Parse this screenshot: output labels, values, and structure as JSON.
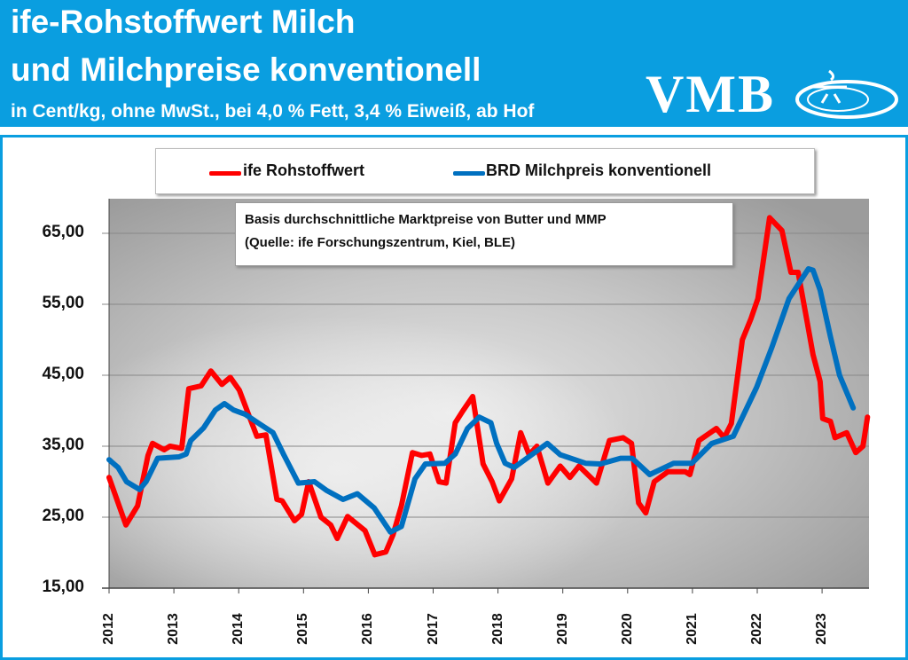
{
  "header": {
    "title_line1": "ife-Rohstoffwert Milch",
    "title_line2": "und Milchpreise konventionell",
    "subtitle": "in Cent/kg, ohne MwSt., bei 4,0 % Fett, 3,4 % Eiweiß, ab Hof",
    "logo_text": "VMB",
    "background_color": "#0a9ee0"
  },
  "annotation": {
    "line1": "Basis durchschnittliche Marktpreise von Butter und MMP",
    "line2": "(Quelle: ife Forschungszentrum, Kiel, BLE)"
  },
  "chart_data": {
    "type": "line",
    "title": "ife-Rohstoffwert Milch und Milchpreise konventionell",
    "ylabel": "",
    "xlabel": "",
    "xlim": [
      2012,
      2023.75
    ],
    "ylim": [
      15,
      70
    ],
    "y_ticks": [
      "15,00",
      "25,00",
      "35,00",
      "45,00",
      "55,00",
      "65,00"
    ],
    "y_tick_values": [
      15,
      25,
      35,
      45,
      55,
      65
    ],
    "x_ticks": [
      "2012",
      "2013",
      "2014",
      "2015",
      "2016",
      "2017",
      "2018",
      "2019",
      "2020",
      "2021",
      "2022",
      "2023"
    ],
    "grid": "horizontal",
    "legend_position": "top",
    "series": [
      {
        "name": "ife Rohstoffwert",
        "color": "#ff0000",
        "points": [
          [
            2012.0,
            30.6
          ],
          [
            2012.26,
            23.9
          ],
          [
            2012.44,
            26.6
          ],
          [
            2012.6,
            33.7
          ],
          [
            2012.67,
            35.4
          ],
          [
            2012.85,
            34.5
          ],
          [
            2012.94,
            35
          ],
          [
            2013.12,
            34.7
          ],
          [
            2013.23,
            43.1
          ],
          [
            2013.42,
            43.5
          ],
          [
            2013.57,
            45.6
          ],
          [
            2013.74,
            43.7
          ],
          [
            2013.87,
            44.7
          ],
          [
            2014.01,
            42.9
          ],
          [
            2014.15,
            39.5
          ],
          [
            2014.28,
            36.4
          ],
          [
            2014.42,
            36.6
          ],
          [
            2014.59,
            27.5
          ],
          [
            2014.67,
            27.3
          ],
          [
            2014.86,
            24.5
          ],
          [
            2014.97,
            25.4
          ],
          [
            2015.08,
            30
          ],
          [
            2015.27,
            25
          ],
          [
            2015.42,
            23.9
          ],
          [
            2015.52,
            22
          ],
          [
            2015.68,
            25.1
          ],
          [
            2015.95,
            23.1
          ],
          [
            2016.1,
            19.7
          ],
          [
            2016.27,
            20.1
          ],
          [
            2016.38,
            22.5
          ],
          [
            2016.51,
            26.6
          ],
          [
            2016.68,
            34.1
          ],
          [
            2016.82,
            33.7
          ],
          [
            2016.95,
            33.9
          ],
          [
            2017.09,
            30
          ],
          [
            2017.2,
            29.8
          ],
          [
            2017.34,
            38.3
          ],
          [
            2017.46,
            40
          ],
          [
            2017.61,
            42
          ],
          [
            2017.77,
            32.5
          ],
          [
            2017.91,
            30
          ],
          [
            2018.02,
            27.3
          ],
          [
            2018.21,
            30.4
          ],
          [
            2018.35,
            36.9
          ],
          [
            2018.48,
            33.8
          ],
          [
            2018.6,
            35
          ],
          [
            2018.77,
            29.8
          ],
          [
            2018.96,
            32.2
          ],
          [
            2019.11,
            30.6
          ],
          [
            2019.25,
            32.2
          ],
          [
            2019.52,
            29.8
          ],
          [
            2019.72,
            35.8
          ],
          [
            2019.93,
            36.2
          ],
          [
            2020.06,
            35.4
          ],
          [
            2020.17,
            27
          ],
          [
            2020.28,
            25.6
          ],
          [
            2020.41,
            30
          ],
          [
            2020.62,
            31.4
          ],
          [
            2020.89,
            31.4
          ],
          [
            2020.96,
            31
          ],
          [
            2021.1,
            35.8
          ],
          [
            2021.37,
            37.5
          ],
          [
            2021.49,
            36.2
          ],
          [
            2021.6,
            38.2
          ],
          [
            2021.77,
            50
          ],
          [
            2021.9,
            52.9
          ],
          [
            2022.01,
            55.8
          ],
          [
            2022.19,
            67.2
          ],
          [
            2022.38,
            65.4
          ],
          [
            2022.52,
            59.5
          ],
          [
            2022.63,
            59.5
          ],
          [
            2022.77,
            52.5
          ],
          [
            2022.86,
            47.9
          ],
          [
            2022.97,
            44.1
          ],
          [
            2023.01,
            38.9
          ],
          [
            2023.13,
            38.5
          ],
          [
            2023.2,
            36.2
          ],
          [
            2023.38,
            36.9
          ],
          [
            2023.52,
            34.1
          ],
          [
            2023.63,
            35
          ],
          [
            2023.7,
            39.1
          ]
        ]
      },
      {
        "name": "BRD Milchpreis konventionell",
        "color": "#0070c0",
        "points": [
          [
            2012.0,
            33.1
          ],
          [
            2012.14,
            32
          ],
          [
            2012.27,
            30
          ],
          [
            2012.47,
            28.9
          ],
          [
            2012.57,
            30
          ],
          [
            2012.75,
            33.3
          ],
          [
            2013.08,
            33.5
          ],
          [
            2013.19,
            33.9
          ],
          [
            2013.26,
            35.8
          ],
          [
            2013.46,
            37.6
          ],
          [
            2013.64,
            40.1
          ],
          [
            2013.78,
            41
          ],
          [
            2013.92,
            40.1
          ],
          [
            2014.1,
            39.5
          ],
          [
            2014.33,
            38.1
          ],
          [
            2014.53,
            36.9
          ],
          [
            2014.7,
            33.7
          ],
          [
            2014.92,
            29.8
          ],
          [
            2015.17,
            30
          ],
          [
            2015.35,
            28.8
          ],
          [
            2015.61,
            27.5
          ],
          [
            2015.83,
            28.3
          ],
          [
            2016.09,
            26.3
          ],
          [
            2016.34,
            22.9
          ],
          [
            2016.51,
            23.7
          ],
          [
            2016.72,
            30.4
          ],
          [
            2016.88,
            32.5
          ],
          [
            2017.18,
            32.6
          ],
          [
            2017.34,
            33.9
          ],
          [
            2017.53,
            37.5
          ],
          [
            2017.71,
            39.1
          ],
          [
            2017.89,
            38.3
          ],
          [
            2017.98,
            35.4
          ],
          [
            2018.11,
            32.6
          ],
          [
            2018.25,
            32
          ],
          [
            2018.76,
            35.4
          ],
          [
            2018.96,
            33.8
          ],
          [
            2019.35,
            32.6
          ],
          [
            2019.58,
            32.5
          ],
          [
            2019.89,
            33.3
          ],
          [
            2020.07,
            33.3
          ],
          [
            2020.34,
            31
          ],
          [
            2020.71,
            32.6
          ],
          [
            2020.99,
            32.6
          ],
          [
            2021.3,
            35.4
          ],
          [
            2021.63,
            36.4
          ],
          [
            2021.99,
            43.3
          ],
          [
            2022.22,
            48.8
          ],
          [
            2022.49,
            55.8
          ],
          [
            2022.79,
            60
          ],
          [
            2022.86,
            59.8
          ],
          [
            2022.97,
            57
          ],
          [
            2023.13,
            50.4
          ],
          [
            2023.27,
            45
          ],
          [
            2023.48,
            40.4
          ]
        ]
      }
    ]
  }
}
